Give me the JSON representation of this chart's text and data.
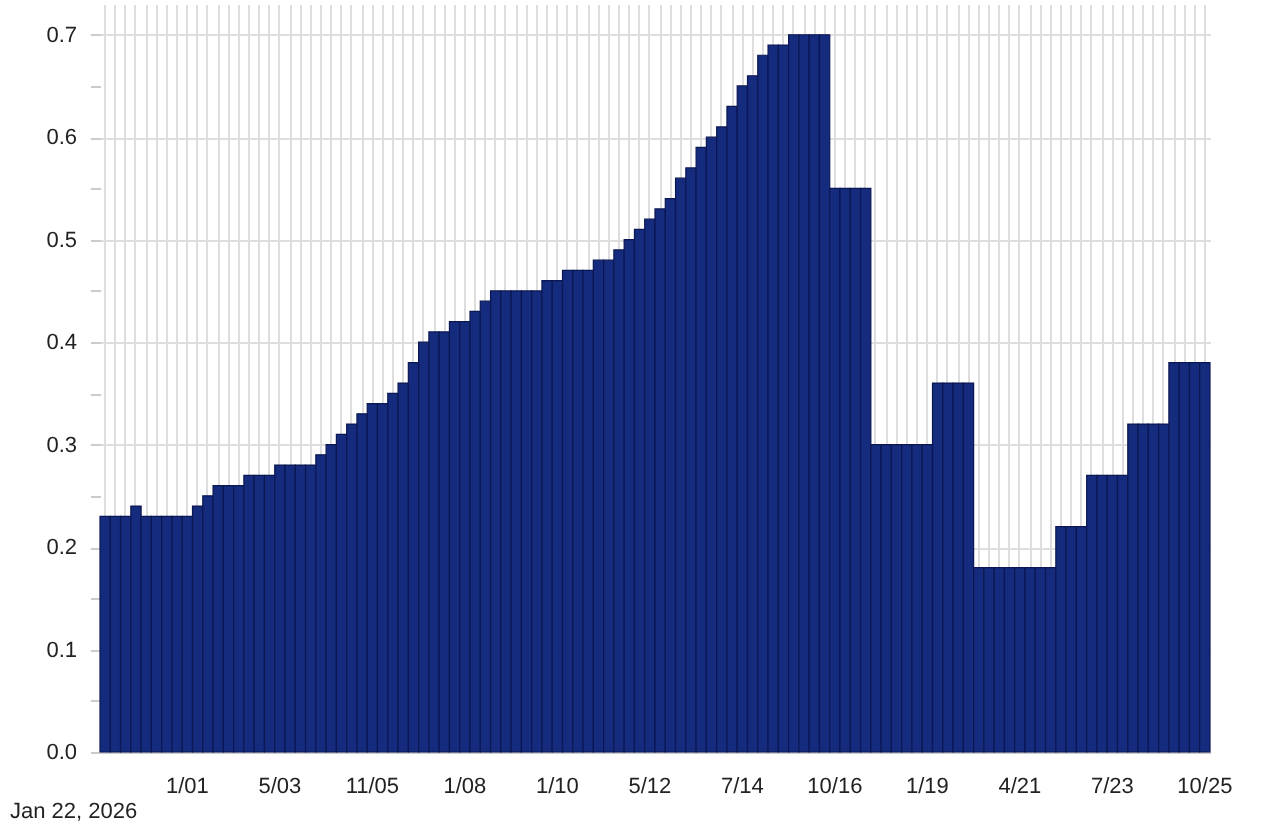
{
  "chart_data": {
    "type": "bar",
    "categories": [
      null,
      null,
      null,
      null,
      null,
      null,
      null,
      null,
      "1/01",
      null,
      null,
      null,
      null,
      null,
      null,
      null,
      null,
      "5/03",
      null,
      null,
      null,
      null,
      null,
      null,
      null,
      null,
      "11/05",
      null,
      null,
      null,
      null,
      null,
      null,
      null,
      null,
      "1/08",
      null,
      null,
      null,
      null,
      null,
      null,
      null,
      null,
      "1/10",
      null,
      null,
      null,
      null,
      null,
      null,
      null,
      null,
      "5/12",
      null,
      null,
      null,
      null,
      null,
      null,
      null,
      null,
      "7/14",
      null,
      null,
      null,
      null,
      null,
      null,
      null,
      null,
      "10/16",
      null,
      null,
      null,
      null,
      null,
      null,
      null,
      null,
      "1/19",
      null,
      null,
      null,
      null,
      null,
      null,
      null,
      null,
      "4/21",
      null,
      null,
      null,
      null,
      null,
      null,
      null,
      null,
      "7/23",
      null,
      null,
      null,
      null,
      null,
      null,
      null,
      null,
      "10/25"
    ],
    "values": [
      0.23,
      0.23,
      0.23,
      0.24,
      0.23,
      0.23,
      0.23,
      0.23,
      0.23,
      0.24,
      0.25,
      0.26,
      0.26,
      0.26,
      0.27,
      0.27,
      0.27,
      0.28,
      0.28,
      0.28,
      0.28,
      0.29,
      0.3,
      0.31,
      0.32,
      0.33,
      0.34,
      0.34,
      0.35,
      0.36,
      0.38,
      0.4,
      0.41,
      0.41,
      0.42,
      0.42,
      0.43,
      0.44,
      0.45,
      0.45,
      0.45,
      0.45,
      0.45,
      0.46,
      0.46,
      0.47,
      0.47,
      0.47,
      0.48,
      0.48,
      0.49,
      0.5,
      0.51,
      0.52,
      0.53,
      0.54,
      0.56,
      0.57,
      0.59,
      0.6,
      0.61,
      0.63,
      0.65,
      0.66,
      0.68,
      0.69,
      0.69,
      0.7,
      0.7,
      0.7,
      0.7,
      0.55,
      0.55,
      0.55,
      0.55,
      0.3,
      0.3,
      0.3,
      0.3,
      0.3,
      0.3,
      0.36,
      0.36,
      0.36,
      0.36,
      0.18,
      0.18,
      0.18,
      0.18,
      0.18,
      0.18,
      0.18,
      0.18,
      0.22,
      0.22,
      0.22,
      0.27,
      0.27,
      0.27,
      0.27,
      0.32,
      0.32,
      0.32,
      0.32,
      0.38,
      0.38,
      0.38,
      0.38
    ],
    "color": "#142b7e",
    "ylim": [
      0,
      0.73
    ],
    "yticks": [
      {
        "value": 0,
        "label": "0.0"
      },
      {
        "value": 0.05,
        "label": null
      },
      0.1,
      {
        "value": 0.15,
        "label": null
      },
      0.2,
      {
        "value": 0.25,
        "label": null
      },
      0.3,
      {
        "value": 0.35,
        "label": null
      },
      0.4,
      {
        "value": 0.45,
        "label": null
      },
      0.5,
      {
        "value": 0.55,
        "label": null
      },
      0.6,
      {
        "value": 0.65,
        "label": null
      },
      0.7
    ],
    "grid": true,
    "annotations": [
      "Jan 22, 2026"
    ]
  }
}
